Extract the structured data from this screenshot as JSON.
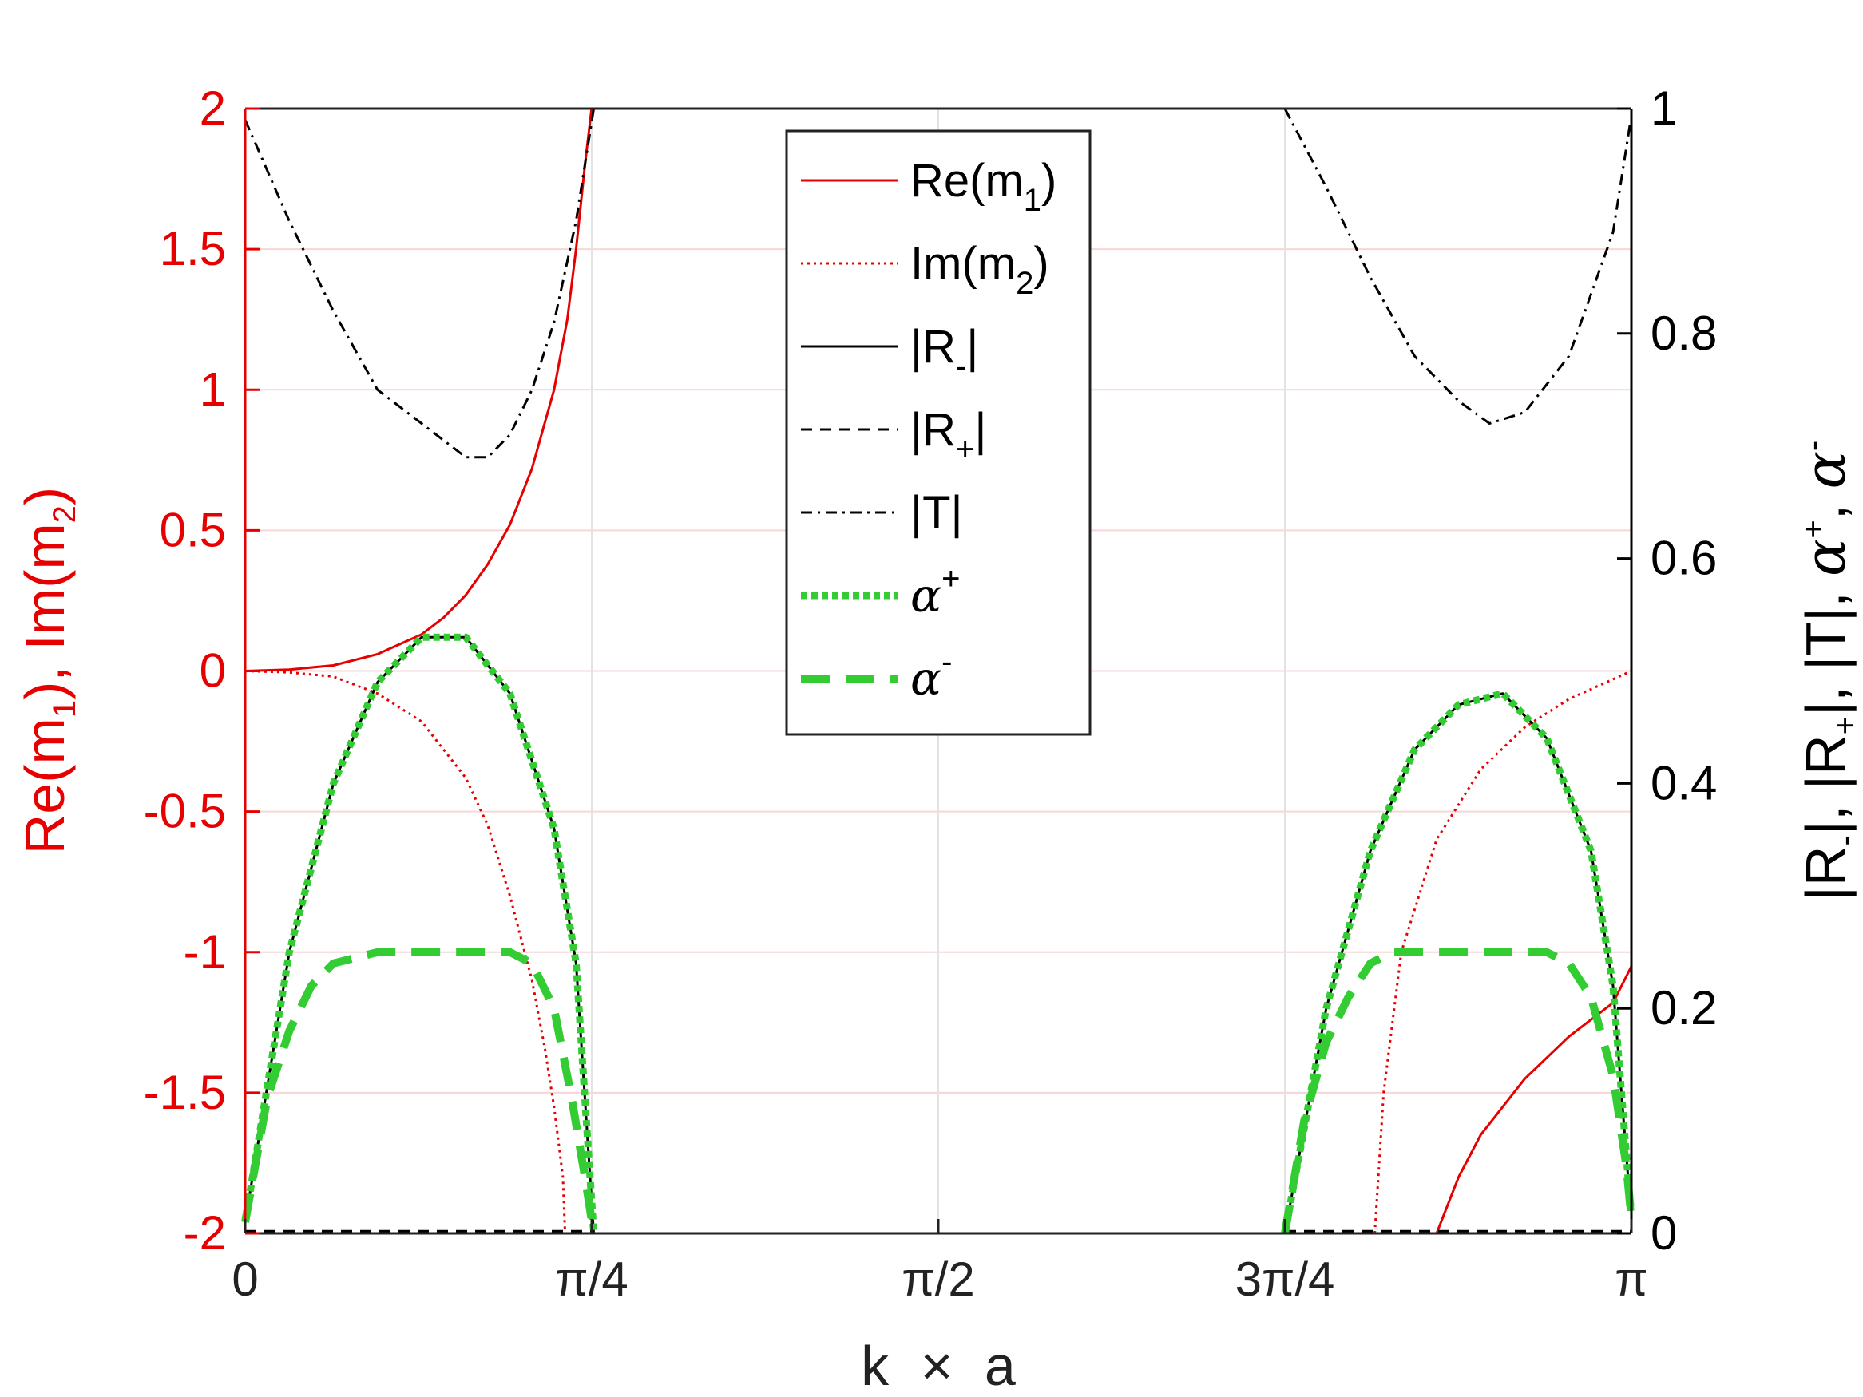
{
  "colors": {
    "left_axis": "#e60000",
    "right_axis": "#000000",
    "re_m1": "#e60000",
    "im_m2": "#e60000",
    "r_minus": "#000000",
    "r_plus": "#000000",
    "t": "#000000",
    "alpha_plus": "#33cc33",
    "alpha_minus": "#33cc33",
    "grid_left": "#f6d6d6",
    "grid_x": "#e3e3e3"
  },
  "chart_data": {
    "type": "line",
    "grid": true,
    "legend_position": "top-center",
    "xlabel": {
      "base": "k",
      "op": "×",
      "var": "a"
    },
    "xlim": [
      0,
      3.14159
    ],
    "x_ticks": [
      {
        "value": 0,
        "label": "0"
      },
      {
        "value": 0.7854,
        "label": "π/4"
      },
      {
        "value": 1.5708,
        "label": "π/2"
      },
      {
        "value": 2.3562,
        "label": "3π/4"
      },
      {
        "value": 3.14159,
        "label": "π"
      }
    ],
    "left_axis": {
      "label_parts": {
        "a": "Re(m",
        "a_sub": "1",
        "b": "), Im(m",
        "b_sub": "2",
        "c": ")"
      },
      "ylim": [
        -2,
        2
      ],
      "ticks": [
        "-2",
        "-1.5",
        "-1",
        "-0.5",
        "0",
        "0.5",
        "1",
        "1.5",
        "2"
      ],
      "tick_values": [
        -2,
        -1.5,
        -1,
        -0.5,
        0,
        0.5,
        1,
        1.5,
        2
      ]
    },
    "right_axis": {
      "label_parts": {
        "a": "|R",
        "a_sub": "-",
        "b": "|, |R",
        "b_sub": "+",
        "c": "|, |T|, ",
        "alpha": "α",
        "alpha_sup1": "+",
        "d": ", ",
        "alpha2": "α",
        "alpha_sup2": "-"
      },
      "ylim": [
        0,
        1
      ],
      "ticks": [
        "0",
        "0.2",
        "0.4",
        "0.6",
        "0.8",
        "1"
      ],
      "tick_values": [
        0,
        0.2,
        0.4,
        0.6,
        0.8,
        1
      ]
    },
    "series": [
      {
        "key": "re_m1",
        "axis": "left",
        "style": "solid",
        "width": 3,
        "legend": {
          "main": "Re(m",
          "sub": "1",
          "tail": ")"
        },
        "segments": [
          [
            [
              0,
              0
            ],
            [
              0.1,
              0.005
            ],
            [
              0.2,
              0.02
            ],
            [
              0.3,
              0.06
            ],
            [
              0.4,
              0.13
            ],
            [
              0.45,
              0.19
            ],
            [
              0.5,
              0.27
            ],
            [
              0.55,
              0.38
            ],
            [
              0.6,
              0.52
            ],
            [
              0.65,
              0.72
            ],
            [
              0.7,
              1.0
            ],
            [
              0.73,
              1.25
            ],
            [
              0.75,
              1.5
            ],
            [
              0.77,
              1.8
            ],
            [
              0.785,
              2.05
            ]
          ],
          [
            [
              2.7,
              -2
            ],
            [
              2.75,
              -1.8
            ],
            [
              2.8,
              -1.65
            ],
            [
              2.9,
              -1.45
            ],
            [
              3.0,
              -1.3
            ],
            [
              3.1,
              -1.18
            ],
            [
              3.1416,
              -1.05
            ]
          ]
        ]
      },
      {
        "key": "im_m2",
        "axis": "left",
        "style": "dotted",
        "width": 3,
        "legend": {
          "main": "Im(m",
          "sub": "2",
          "tail": ")"
        },
        "segments": [
          [
            [
              0,
              0
            ],
            [
              0.1,
              -0.005
            ],
            [
              0.2,
              -0.02
            ],
            [
              0.3,
              -0.08
            ],
            [
              0.4,
              -0.18
            ],
            [
              0.5,
              -0.38
            ],
            [
              0.55,
              -0.55
            ],
            [
              0.6,
              -0.8
            ],
            [
              0.65,
              -1.1
            ],
            [
              0.68,
              -1.35
            ],
            [
              0.7,
              -1.55
            ],
            [
              0.72,
              -1.8
            ],
            [
              0.725,
              -2
            ]
          ],
          [
            [
              2.56,
              -2
            ],
            [
              2.58,
              -1.5
            ],
            [
              2.62,
              -1.0
            ],
            [
              2.7,
              -0.6
            ],
            [
              2.8,
              -0.35
            ],
            [
              2.9,
              -0.2
            ],
            [
              3.0,
              -0.1
            ],
            [
              3.1416,
              0
            ]
          ]
        ]
      },
      {
        "key": "r_minus",
        "axis": "right",
        "style": "solid",
        "width": 3,
        "legend": {
          "main": "|R",
          "sub": "-",
          "tail": "|"
        },
        "segments": [
          [
            [
              0,
              0.01
            ],
            [
              0.1,
              0.25
            ],
            [
              0.2,
              0.4
            ],
            [
              0.3,
              0.49
            ],
            [
              0.4,
              0.53
            ],
            [
              0.5,
              0.53
            ],
            [
              0.6,
              0.48
            ],
            [
              0.7,
              0.36
            ],
            [
              0.75,
              0.24
            ],
            [
              0.79,
              0
            ]
          ],
          [
            [
              2.3562,
              0
            ],
            [
              2.45,
              0.2
            ],
            [
              2.55,
              0.34
            ],
            [
              2.65,
              0.43
            ],
            [
              2.75,
              0.47
            ],
            [
              2.85,
              0.48
            ],
            [
              2.95,
              0.44
            ],
            [
              3.05,
              0.34
            ],
            [
              3.1,
              0.22
            ],
            [
              3.14,
              0.02
            ]
          ]
        ]
      },
      {
        "key": "r_plus",
        "axis": "right",
        "style": "dashed-short",
        "width": 3,
        "legend": {
          "main": "|R",
          "sub": "+",
          "tail": "|"
        },
        "segments": [
          [
            [
              0,
              0.002
            ],
            [
              0.79,
              0.002
            ]
          ],
          [
            [
              2.3562,
              0.002
            ],
            [
              3.1416,
              0.002
            ]
          ]
        ]
      },
      {
        "key": "t",
        "axis": "right",
        "style": "dashdot",
        "width": 3,
        "legend": {
          "main": "|T|",
          "sub": "",
          "tail": ""
        },
        "segments": [
          [
            [
              0,
              0.99
            ],
            [
              0.1,
              0.9
            ],
            [
              0.2,
              0.82
            ],
            [
              0.3,
              0.75
            ],
            [
              0.4,
              0.72
            ],
            [
              0.5,
              0.69
            ],
            [
              0.55,
              0.69
            ],
            [
              0.6,
              0.71
            ],
            [
              0.65,
              0.75
            ],
            [
              0.7,
              0.81
            ],
            [
              0.75,
              0.9
            ],
            [
              0.79,
              1.0
            ]
          ],
          [
            [
              2.3562,
              1.0
            ],
            [
              2.45,
              0.93
            ],
            [
              2.55,
              0.85
            ],
            [
              2.65,
              0.78
            ],
            [
              2.75,
              0.74
            ],
            [
              2.82,
              0.72
            ],
            [
              2.9,
              0.73
            ],
            [
              3.0,
              0.78
            ],
            [
              3.1,
              0.89
            ],
            [
              3.14,
              0.99
            ]
          ]
        ]
      },
      {
        "key": "alpha_plus",
        "axis": "right",
        "style": "dotted-thick",
        "width": 9,
        "legend": {
          "main": "α",
          "sup": "+",
          "tail": ""
        },
        "segments": [
          [
            [
              0,
              0.01
            ],
            [
              0.1,
              0.25
            ],
            [
              0.2,
              0.4
            ],
            [
              0.3,
              0.49
            ],
            [
              0.4,
              0.53
            ],
            [
              0.5,
              0.53
            ],
            [
              0.6,
              0.48
            ],
            [
              0.7,
              0.36
            ],
            [
              0.75,
              0.24
            ],
            [
              0.79,
              0
            ]
          ],
          [
            [
              2.3562,
              0
            ],
            [
              2.45,
              0.2
            ],
            [
              2.55,
              0.34
            ],
            [
              2.65,
              0.43
            ],
            [
              2.75,
              0.47
            ],
            [
              2.85,
              0.48
            ],
            [
              2.95,
              0.44
            ],
            [
              3.05,
              0.34
            ],
            [
              3.1,
              0.22
            ],
            [
              3.14,
              0.02
            ]
          ]
        ]
      },
      {
        "key": "alpha_minus",
        "axis": "right",
        "style": "dashed-thick",
        "width": 10,
        "legend": {
          "main": "α",
          "sup": "-",
          "tail": ""
        },
        "segments": [
          [
            [
              0,
              0.01
            ],
            [
              0.05,
              0.12
            ],
            [
              0.1,
              0.18
            ],
            [
              0.15,
              0.22
            ],
            [
              0.2,
              0.24
            ],
            [
              0.3,
              0.25
            ],
            [
              0.4,
              0.25
            ],
            [
              0.6,
              0.25
            ],
            [
              0.65,
              0.24
            ],
            [
              0.7,
              0.2
            ],
            [
              0.74,
              0.12
            ],
            [
              0.77,
              0.05
            ],
            [
              0.79,
              0
            ]
          ],
          [
            [
              2.3562,
              0
            ],
            [
              2.4,
              0.1
            ],
            [
              2.45,
              0.17
            ],
            [
              2.5,
              0.21
            ],
            [
              2.55,
              0.24
            ],
            [
              2.6,
              0.25
            ],
            [
              2.8,
              0.25
            ],
            [
              2.95,
              0.25
            ],
            [
              3.0,
              0.24
            ],
            [
              3.05,
              0.21
            ],
            [
              3.1,
              0.14
            ],
            [
              3.13,
              0.06
            ],
            [
              3.14,
              0.02
            ]
          ]
        ]
      }
    ]
  }
}
